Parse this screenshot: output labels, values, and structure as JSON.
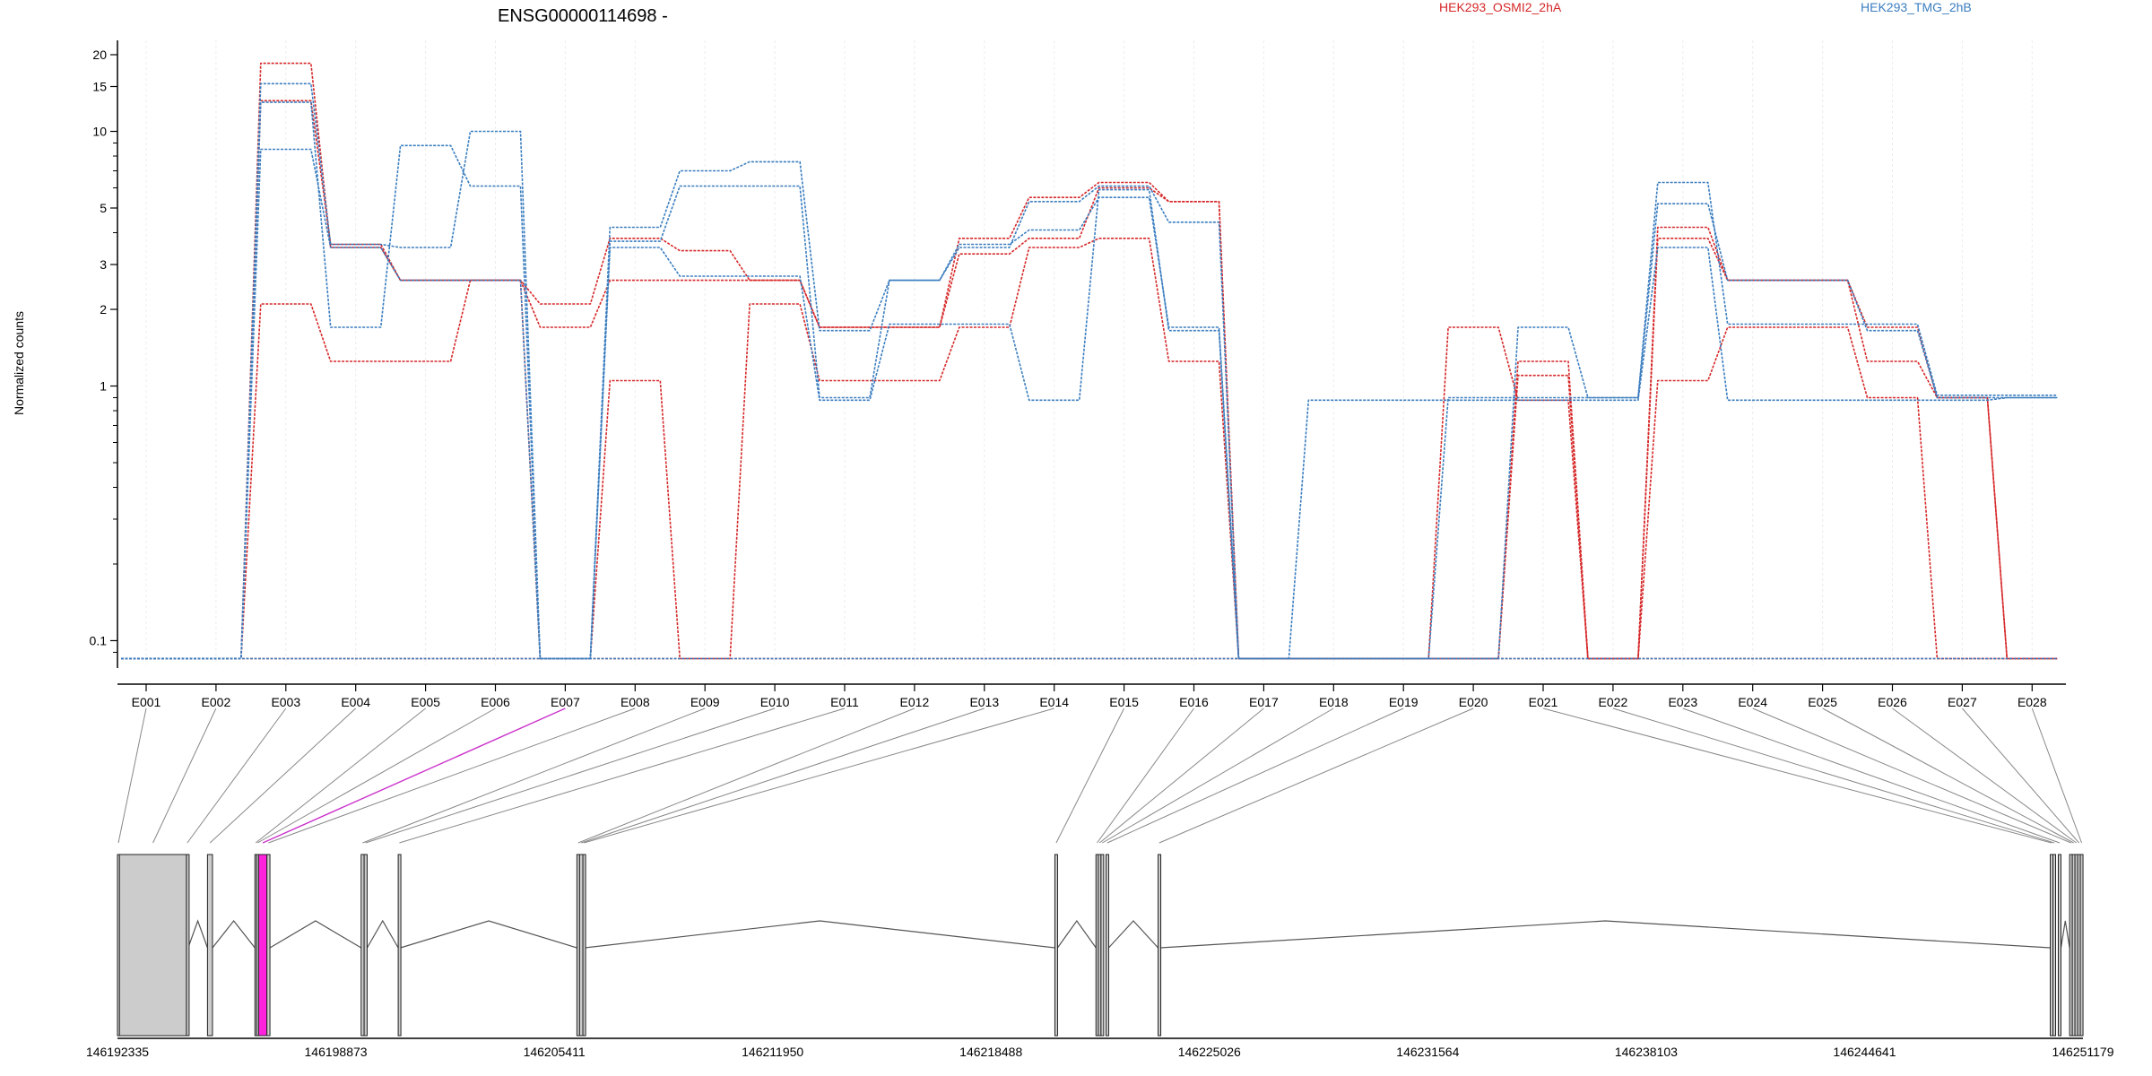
{
  "chart_data": {
    "type": "line",
    "title": "ENSG00000114698 -",
    "ylabel": "Normalized counts",
    "yscale": "log",
    "ylim": [
      0.08,
      21
    ],
    "yticks": [
      {
        "v": 0.1,
        "label": "0.1"
      },
      {
        "v": 1,
        "label": "1"
      },
      {
        "v": 2,
        "label": "2"
      },
      {
        "v": 3,
        "label": "3"
      },
      {
        "v": 5,
        "label": "5"
      },
      {
        "v": 10,
        "label": "10"
      },
      {
        "v": 15,
        "label": "15"
      },
      {
        "v": 20,
        "label": "20"
      }
    ],
    "legend_placement": "top",
    "legend": [
      {
        "name": "HEK293_OSMI2_2hA",
        "color": "#d62728"
      },
      {
        "name": "HEK293_TMG_2hB",
        "color": "#3a7dbf"
      }
    ],
    "categories": [
      "E001",
      "E002",
      "E003",
      "E004",
      "E005",
      "E006",
      "E007",
      "E008",
      "E009",
      "E010",
      "E011",
      "E012",
      "E013",
      "E014",
      "E015",
      "E016",
      "E017",
      "E018",
      "E019",
      "E020",
      "E021",
      "E022",
      "E023",
      "E024",
      "E025",
      "E026",
      "E027",
      "E028"
    ],
    "highlight_exon": "E007",
    "series": [
      {
        "group": "red",
        "color": "#d62728",
        "values": [
          0.085,
          0.085,
          18.5,
          3.5,
          2.6,
          2.6,
          2.1,
          3.8,
          3.4,
          2.6,
          1.7,
          1.7,
          3.8,
          5.5,
          6.3,
          5.3,
          0.085,
          0.085,
          0.085,
          0.085,
          1.1,
          0.085,
          3.8,
          2.6,
          2.6,
          1.7,
          0.9,
          0.085
        ]
      },
      {
        "group": "red",
        "color": "#d62728",
        "values": [
          0.085,
          0.085,
          13.2,
          3.6,
          2.6,
          2.6,
          1.7,
          2.6,
          2.6,
          2.6,
          1.7,
          1.7,
          3.3,
          3.8,
          6.0,
          5.3,
          0.085,
          0.085,
          0.085,
          0.085,
          1.25,
          0.085,
          4.2,
          2.6,
          2.6,
          1.25,
          0.9,
          0.085
        ]
      },
      {
        "group": "red",
        "color": "#d62728",
        "values": [
          0.085,
          0.085,
          2.1,
          1.25,
          1.25,
          2.6,
          0.085,
          1.05,
          0.085,
          2.1,
          1.05,
          1.05,
          1.7,
          3.5,
          3.8,
          1.25,
          0.085,
          0.085,
          0.085,
          1.7,
          0.88,
          0.085,
          1.05,
          1.7,
          1.7,
          0.9,
          0.085,
          0.085
        ]
      },
      {
        "group": "red",
        "color": "#d62728",
        "values": [
          0.085,
          0.085,
          0.085,
          0.085,
          0.085,
          0.085,
          0.085,
          0.085,
          0.085,
          0.085,
          0.085,
          0.085,
          0.085,
          0.085,
          0.085,
          0.085,
          0.085,
          0.085,
          0.085,
          0.085,
          0.085,
          0.085,
          0.085,
          0.085,
          0.085,
          0.085,
          0.085,
          0.085
        ]
      },
      {
        "group": "blue",
        "color": "#3a7dbf",
        "values": [
          0.085,
          0.085,
          15.4,
          3.6,
          3.5,
          10.0,
          0.085,
          4.2,
          7.0,
          7.6,
          1.65,
          2.6,
          3.5,
          5.3,
          6.1,
          4.4,
          0.085,
          0.085,
          0.085,
          0.085,
          1.7,
          0.9,
          6.3,
          1.75,
          1.75,
          1.75,
          0.92,
          0.92
        ]
      },
      {
        "group": "blue",
        "color": "#3a7dbf",
        "values": [
          0.085,
          0.085,
          13.0,
          1.7,
          8.8,
          6.1,
          0.085,
          3.7,
          6.1,
          6.1,
          0.9,
          2.6,
          3.6,
          4.1,
          5.5,
          1.7,
          0.085,
          0.085,
          0.085,
          0.9,
          0.9,
          0.9,
          5.2,
          2.6,
          2.6,
          1.65,
          0.9,
          0.9
        ]
      },
      {
        "group": "blue",
        "color": "#3a7dbf",
        "values": [
          0.085,
          0.085,
          8.5,
          3.5,
          2.6,
          2.6,
          0.085,
          3.5,
          2.7,
          2.7,
          0.88,
          1.75,
          1.75,
          0.88,
          5.9,
          1.65,
          0.085,
          0.88,
          0.88,
          0.88,
          0.88,
          0.88,
          3.5,
          0.88,
          0.88,
          0.88,
          0.88,
          0.9
        ]
      },
      {
        "group": "blue",
        "color": "#3a7dbf",
        "values": [
          0.085,
          0.085,
          0.085,
          0.085,
          0.085,
          0.085,
          0.085,
          0.085,
          0.085,
          0.085,
          0.085,
          0.085,
          0.085,
          0.085,
          0.085,
          0.085,
          0.085,
          0.085,
          0.085,
          0.085,
          0.085,
          0.085,
          0.085,
          0.085,
          0.085,
          0.085,
          0.085,
          0.085
        ]
      }
    ],
    "gene_model": {
      "coord_start": 146192335,
      "coord_end": 146251179,
      "coord_labels": [
        {
          "v": 146192335,
          "label": "146192335"
        },
        {
          "v": 146198873,
          "label": "146198873"
        },
        {
          "v": 146205411,
          "label": "146205411"
        },
        {
          "v": 146211950,
          "label": "146211950"
        },
        {
          "v": 146218488,
          "label": "146218488"
        },
        {
          "v": 146225026,
          "label": "146225026"
        },
        {
          "v": 146231564,
          "label": "146231564"
        },
        {
          "v": 146238103,
          "label": "146238103"
        },
        {
          "v": 146244641,
          "label": "146244641"
        },
        {
          "v": 146251179,
          "label": "146251179"
        }
      ],
      "exons": [
        {
          "id": "E001",
          "start": 146192335,
          "end": 146192390
        },
        {
          "id": "E002",
          "start": 146192395,
          "end": 146194400
        },
        {
          "id": "E003",
          "start": 146194400,
          "end": 146194450
        },
        {
          "id": "E004",
          "start": 146195030,
          "end": 146195180
        },
        {
          "id": "E005",
          "start": 146196450,
          "end": 146196500
        },
        {
          "id": "E006",
          "start": 146196500,
          "end": 146196560
        },
        {
          "id": "E007",
          "start": 146196560,
          "end": 146196810
        },
        {
          "id": "E008",
          "start": 146196810,
          "end": 146196900
        },
        {
          "id": "E009",
          "start": 146199630,
          "end": 146199720
        },
        {
          "id": "E010",
          "start": 146199720,
          "end": 146199810
        },
        {
          "id": "E011",
          "start": 146200740,
          "end": 146200810
        },
        {
          "id": "E012",
          "start": 146206090,
          "end": 146206170
        },
        {
          "id": "E013",
          "start": 146206170,
          "end": 146206270
        },
        {
          "id": "E014",
          "start": 146206270,
          "end": 146206330
        },
        {
          "id": "E015",
          "start": 146220400,
          "end": 146220480
        },
        {
          "id": "E016",
          "start": 146221630,
          "end": 146221700
        },
        {
          "id": "E017",
          "start": 146221700,
          "end": 146221780
        },
        {
          "id": "E018",
          "start": 146221780,
          "end": 146221860
        },
        {
          "id": "E019",
          "start": 146221930,
          "end": 146222010
        },
        {
          "id": "E020",
          "start": 146223490,
          "end": 146223560
        },
        {
          "id": "E021",
          "start": 146250200,
          "end": 146250280
        },
        {
          "id": "E022",
          "start": 146250280,
          "end": 146250360
        },
        {
          "id": "E023",
          "start": 146250440,
          "end": 146250520
        },
        {
          "id": "E024",
          "start": 146250780,
          "end": 146250860
        },
        {
          "id": "E025",
          "start": 146250860,
          "end": 146250940
        },
        {
          "id": "E026",
          "start": 146250940,
          "end": 146251020
        },
        {
          "id": "E027",
          "start": 146251020,
          "end": 146251100
        },
        {
          "id": "E028",
          "start": 146251100,
          "end": 146251179
        }
      ],
      "intron_peaks": [
        {
          "start": 146194450,
          "end": 146195030
        },
        {
          "start": 146195180,
          "end": 146196450
        },
        {
          "start": 146196900,
          "end": 146199630
        },
        {
          "start": 146199810,
          "end": 146200740
        },
        {
          "start": 146200810,
          "end": 146206090
        },
        {
          "start": 146206330,
          "end": 146220400
        },
        {
          "start": 146220480,
          "end": 146221630
        },
        {
          "start": 146222010,
          "end": 146223490
        },
        {
          "start": 146223560,
          "end": 146250200
        },
        {
          "start": 146250520,
          "end": 146250780
        }
      ]
    }
  }
}
